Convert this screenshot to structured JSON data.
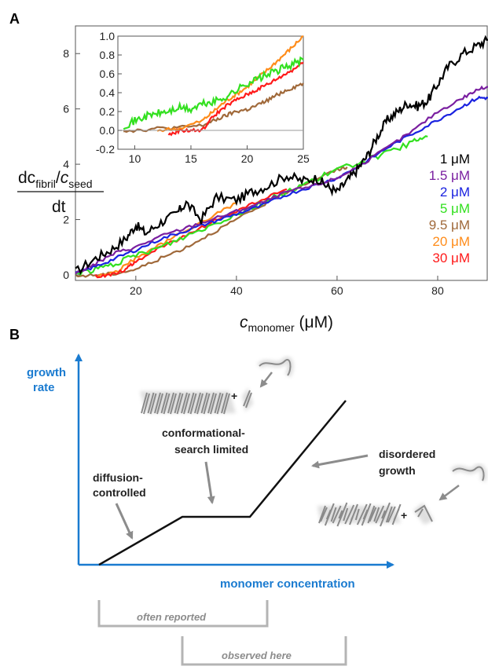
{
  "panels": {
    "a_letter": "A",
    "b_letter": "B"
  },
  "chart_data": [
    {
      "type": "line",
      "xlim": [
        8,
        90
      ],
      "ylim": [
        -0.2,
        9
      ],
      "xticks": [
        20,
        40,
        60,
        80
      ],
      "yticks": [
        0,
        2,
        4,
        6,
        8
      ],
      "xlabel": {
        "main": "c",
        "sub": "monomer",
        "unit": " (μM)"
      },
      "ylabel": {
        "num_main": "dc",
        "num_sub1": "fibril",
        "slash": "/",
        "num_main2": "c",
        "num_sub2": "seed",
        "den": "dt"
      },
      "legend_placement": "right",
      "series": [
        {
          "name": "1 μM",
          "color": "#000000",
          "x": [
            8,
            12,
            15,
            18,
            20,
            22,
            25,
            28,
            30,
            33,
            36,
            40,
            43,
            46,
            50,
            53,
            56,
            58,
            60,
            62,
            64,
            66,
            68,
            70,
            72,
            74,
            76,
            78,
            80,
            82,
            85,
            88,
            90
          ],
          "y": [
            0.1,
            0.6,
            0.9,
            1.3,
            1.8,
            1.5,
            1.9,
            2.2,
            2.6,
            2.0,
            2.8,
            2.7,
            3.0,
            3.2,
            3.6,
            3.4,
            3.5,
            3.2,
            3.0,
            3.4,
            3.8,
            4.3,
            5.0,
            5.6,
            5.9,
            6.2,
            6.1,
            6.3,
            6.9,
            7.5,
            8.0,
            8.3,
            8.5
          ]
        },
        {
          "name": "1.5 μM",
          "color": "#7a1fa0",
          "x": [
            8,
            12,
            16,
            20,
            25,
            30,
            35,
            40,
            45,
            50,
            55,
            60,
            65,
            70,
            75,
            80,
            85,
            88,
            90
          ],
          "y": [
            0.05,
            0.4,
            0.8,
            1.0,
            1.4,
            1.7,
            2.0,
            2.3,
            2.6,
            3.0,
            3.2,
            3.5,
            4.0,
            4.6,
            5.2,
            5.9,
            6.4,
            6.7,
            6.8
          ]
        },
        {
          "name": "2 μM",
          "color": "#1a22e0",
          "x": [
            8,
            12,
            16,
            20,
            25,
            30,
            35,
            40,
            45,
            50,
            55,
            60,
            65,
            70,
            75,
            80,
            85,
            88,
            90
          ],
          "y": [
            0.05,
            0.3,
            0.6,
            0.9,
            1.3,
            1.6,
            1.9,
            2.2,
            2.5,
            2.9,
            3.2,
            3.5,
            4.0,
            4.6,
            5.1,
            5.6,
            6.1,
            6.4,
            6.4
          ]
        },
        {
          "name": "5 μM",
          "color": "#33e020",
          "x": [
            8,
            12,
            16,
            20,
            25,
            30,
            35,
            40,
            45,
            50,
            55,
            60,
            65,
            70,
            75,
            78
          ],
          "y": [
            0.05,
            0.2,
            0.4,
            0.7,
            1.0,
            1.4,
            1.8,
            2.2,
            2.6,
            3.0,
            3.4,
            3.8,
            4.1,
            4.4,
            4.8,
            5.0
          ]
        },
        {
          "name": "9.5 μM",
          "color": "#a0693a",
          "x": [
            8,
            12,
            16,
            20,
            25,
            30,
            35,
            40,
            45,
            50,
            55,
            60,
            62
          ],
          "y": [
            -0.05,
            0.0,
            0.05,
            0.2,
            0.6,
            1.0,
            1.5,
            2.0,
            2.5,
            3.0,
            3.4,
            3.8,
            3.9
          ]
        },
        {
          "name": "20 μM",
          "color": "#ff8c1a",
          "x": [
            12,
            16,
            20,
            25,
            30,
            35,
            40
          ],
          "y": [
            -0.05,
            0.1,
            0.6,
            1.1,
            1.6,
            2.1,
            2.6
          ]
        },
        {
          "name": "30 μM",
          "color": "#ff1a1a",
          "x": [
            12,
            15,
            18,
            20,
            25,
            30,
            35,
            40,
            45,
            50
          ],
          "y": [
            -0.05,
            0.0,
            0.2,
            0.5,
            1.0,
            1.4,
            1.9,
            2.3,
            2.7,
            3.1
          ]
        }
      ]
    },
    {
      "type": "line",
      "inset": true,
      "xlim": [
        8.5,
        25
      ],
      "ylim": [
        -0.2,
        1.0
      ],
      "xticks": [
        10,
        15,
        20,
        25
      ],
      "yticks": [
        -0.2,
        0.0,
        0.2,
        0.4,
        0.6,
        0.8,
        1.0
      ],
      "ytick_labels": [
        "-0.2",
        "0.0",
        "0.2",
        "0.4",
        "0.6",
        "0.8",
        "1.0"
      ],
      "series": [
        {
          "name": "5 μM",
          "color": "#33e020",
          "x": [
            9,
            10,
            11,
            12,
            13,
            14,
            15,
            16,
            17,
            18,
            19,
            20,
            21,
            22,
            23,
            24,
            25
          ],
          "y": [
            0.05,
            0.1,
            0.15,
            0.18,
            0.2,
            0.24,
            0.22,
            0.28,
            0.3,
            0.35,
            0.42,
            0.5,
            0.55,
            0.6,
            0.65,
            0.7,
            0.75
          ]
        },
        {
          "name": "9.5 μM",
          "color": "#a0693a",
          "x": [
            9,
            10,
            12,
            14,
            16,
            17,
            18,
            19,
            20,
            21,
            22,
            23,
            24,
            25
          ],
          "y": [
            0.0,
            0.0,
            0.02,
            0.03,
            0.05,
            0.1,
            0.15,
            0.2,
            0.22,
            0.27,
            0.33,
            0.4,
            0.45,
            0.5
          ]
        },
        {
          "name": "20 μM",
          "color": "#ff8c1a",
          "x": [
            12,
            14,
            16,
            17,
            18,
            19,
            20,
            21,
            22,
            23,
            24,
            25
          ],
          "y": [
            0.0,
            0.02,
            0.1,
            0.2,
            0.3,
            0.38,
            0.46,
            0.56,
            0.66,
            0.77,
            0.88,
            1.0
          ]
        },
        {
          "name": "30 μM",
          "color": "#ff1a1a",
          "x": [
            13,
            14,
            15,
            16,
            17,
            18,
            19,
            20,
            21,
            22,
            23,
            24,
            25
          ],
          "y": [
            -0.05,
            0.0,
            0.0,
            0.0,
            0.15,
            0.25,
            0.32,
            0.38,
            0.44,
            0.5,
            0.57,
            0.64,
            0.72
          ]
        }
      ]
    }
  ],
  "diagram": {
    "y_axis_label_line1": "growth",
    "y_axis_label_line2": "rate",
    "x_axis_label": "monomer concentration",
    "label_diffusion_line1": "diffusion-",
    "label_diffusion_line2": "controlled",
    "label_conformational_line1": "conformational-",
    "label_conformational_line2": "search limited",
    "label_disordered_line1": "disordered",
    "label_disordered_line2": "growth",
    "plus": "+",
    "often_reported": "often reported",
    "observed_here": "observed here"
  }
}
